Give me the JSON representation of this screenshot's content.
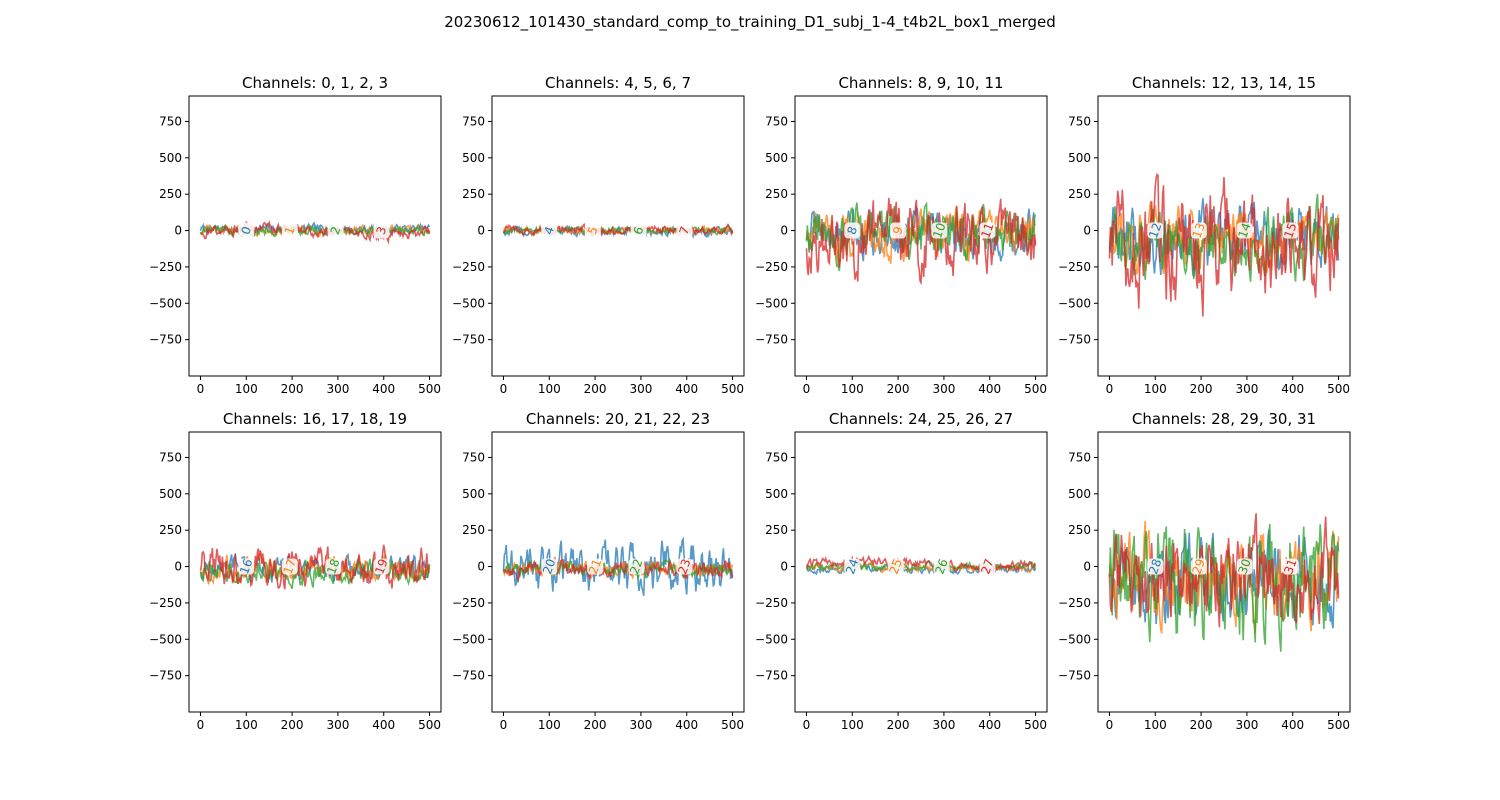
{
  "figure": {
    "title": "20230612_101430_standard_comp_to_training_D1_subj_1-4_t4b2L_box1_merged"
  },
  "colors": {
    "series": [
      "#1f77b4",
      "#ff7f0e",
      "#2ca02c",
      "#d62728"
    ]
  },
  "chart_data": [
    {
      "type": "line",
      "title": "Channels: 0, 1, 2, 3",
      "xlim": [
        -25,
        525
      ],
      "ylim": [
        -1000,
        925
      ],
      "xticks": [
        0,
        100,
        200,
        300,
        400,
        500
      ],
      "yticks": [
        750,
        500,
        250,
        0,
        -250,
        -500,
        -750
      ],
      "grid": false,
      "series": [
        {
          "name": "0",
          "amp": 25,
          "offset": 10,
          "trend": 0,
          "label_x": 100
        },
        {
          "name": "1",
          "amp": 25,
          "offset": 0,
          "trend": 0,
          "label_x": 195
        },
        {
          "name": "2",
          "amp": 25,
          "offset": 0,
          "trend": 0,
          "label_x": 295
        },
        {
          "name": "3",
          "amp": 30,
          "offset": -10,
          "trend": 25,
          "label_x": 395
        }
      ]
    },
    {
      "type": "line",
      "title": "Channels: 4, 5, 6, 7",
      "xlim": [
        -25,
        525
      ],
      "ylim": [
        -1000,
        925
      ],
      "xticks": [
        0,
        100,
        200,
        300,
        400,
        500
      ],
      "yticks": [
        750,
        500,
        250,
        0,
        -250,
        -500,
        -750
      ],
      "grid": false,
      "series": [
        {
          "name": "4",
          "amp": 25,
          "offset": -10,
          "trend": 0,
          "label_x": 100
        },
        {
          "name": "5",
          "amp": 20,
          "offset": 0,
          "trend": 0,
          "label_x": 195
        },
        {
          "name": "6",
          "amp": 20,
          "offset": 0,
          "trend": 0,
          "label_x": 295
        },
        {
          "name": "7",
          "amp": 25,
          "offset": 5,
          "trend": 0,
          "label_x": 395
        }
      ]
    },
    {
      "type": "line",
      "title": "Channels: 8, 9, 10, 11",
      "xlim": [
        -25,
        525
      ],
      "ylim": [
        -1000,
        925
      ],
      "xticks": [
        0,
        100,
        200,
        300,
        400,
        500
      ],
      "yticks": [
        750,
        500,
        250,
        0,
        -250,
        -500,
        -750
      ],
      "grid": false,
      "series": [
        {
          "name": "8",
          "amp": 130,
          "offset": -20,
          "trend": 0,
          "label_x": 100
        },
        {
          "name": "9",
          "amp": 130,
          "offset": -20,
          "trend": 0,
          "label_x": 200
        },
        {
          "name": "10",
          "amp": 140,
          "offset": -30,
          "trend": 0,
          "label_x": 290
        },
        {
          "name": "11",
          "amp": 200,
          "offset": -60,
          "trend": 0,
          "label_x": 395
        }
      ]
    },
    {
      "type": "line",
      "title": "Channels: 12, 13, 14, 15",
      "xlim": [
        -25,
        525
      ],
      "ylim": [
        -1000,
        925
      ],
      "xticks": [
        0,
        100,
        200,
        300,
        400,
        500
      ],
      "yticks": [
        750,
        500,
        250,
        0,
        -250,
        -500,
        -750
      ],
      "grid": false,
      "series": [
        {
          "name": "12",
          "amp": 180,
          "offset": -60,
          "trend": 0,
          "label_x": 100
        },
        {
          "name": "13",
          "amp": 180,
          "offset": -50,
          "trend": 0,
          "label_x": 195
        },
        {
          "name": "14",
          "amp": 190,
          "offset": -80,
          "trend": 0,
          "label_x": 295
        },
        {
          "name": "15",
          "amp": 300,
          "offset": -120,
          "trend": 0,
          "label_x": 395
        }
      ]
    },
    {
      "type": "line",
      "title": "Channels: 16, 17, 18, 19",
      "xlim": [
        -25,
        525
      ],
      "ylim": [
        -1000,
        925
      ],
      "xticks": [
        0,
        100,
        200,
        300,
        400,
        500
      ],
      "yticks": [
        750,
        500,
        250,
        0,
        -250,
        -500,
        -750
      ],
      "grid": false,
      "series": [
        {
          "name": "16",
          "amp": 70,
          "offset": -20,
          "trend": 0,
          "label_x": 100
        },
        {
          "name": "17",
          "amp": 70,
          "offset": -20,
          "trend": 0,
          "label_x": 195
        },
        {
          "name": "18",
          "amp": 70,
          "offset": -30,
          "trend": 0,
          "label_x": 290
        },
        {
          "name": "19",
          "amp": 110,
          "offset": -10,
          "trend": 0,
          "label_x": 395
        }
      ]
    },
    {
      "type": "line",
      "title": "Channels: 20, 21, 22, 23",
      "xlim": [
        -25,
        525
      ],
      "ylim": [
        -1000,
        925
      ],
      "xticks": [
        0,
        100,
        200,
        300,
        400,
        500
      ],
      "yticks": [
        750,
        500,
        250,
        0,
        -250,
        -500,
        -750
      ],
      "grid": false,
      "series": [
        {
          "name": "20",
          "amp": 140,
          "offset": -10,
          "trend": 0,
          "label_x": 100
        },
        {
          "name": "21",
          "amp": 40,
          "offset": -20,
          "trend": 0,
          "label_x": 200
        },
        {
          "name": "22",
          "amp": 40,
          "offset": -20,
          "trend": 0,
          "label_x": 290
        },
        {
          "name": "23",
          "amp": 45,
          "offset": -15,
          "trend": 0,
          "label_x": 395
        }
      ]
    },
    {
      "type": "line",
      "title": "Channels: 24, 25, 26, 27",
      "xlim": [
        -25,
        525
      ],
      "ylim": [
        -1000,
        925
      ],
      "xticks": [
        0,
        100,
        200,
        300,
        400,
        500
      ],
      "yticks": [
        750,
        500,
        250,
        0,
        -250,
        -500,
        -750
      ],
      "grid": false,
      "series": [
        {
          "name": "24",
          "amp": 20,
          "offset": -20,
          "trend": 0,
          "label_x": 100
        },
        {
          "name": "25",
          "amp": 20,
          "offset": -10,
          "trend": 0,
          "label_x": 195
        },
        {
          "name": "26",
          "amp": 20,
          "offset": 0,
          "trend": 0,
          "label_x": 295
        },
        {
          "name": "27",
          "amp": 25,
          "offset": 15,
          "trend": 20,
          "label_x": 395
        }
      ]
    },
    {
      "type": "line",
      "title": "Channels: 28, 29, 30, 31",
      "xlim": [
        -25,
        525
      ],
      "ylim": [
        -1000,
        925
      ],
      "xticks": [
        0,
        100,
        200,
        300,
        400,
        500
      ],
      "yticks": [
        750,
        500,
        250,
        0,
        -250,
        -500,
        -750
      ],
      "grid": false,
      "series": [
        {
          "name": "28",
          "amp": 240,
          "offset": -60,
          "trend": 0,
          "label_x": 100
        },
        {
          "name": "29",
          "amp": 240,
          "offset": -60,
          "trend": 0,
          "label_x": 195
        },
        {
          "name": "30",
          "amp": 320,
          "offset": -80,
          "trend": 0,
          "label_x": 295
        },
        {
          "name": "31",
          "amp": 260,
          "offset": -60,
          "trend": 0,
          "label_x": 395
        }
      ]
    }
  ]
}
